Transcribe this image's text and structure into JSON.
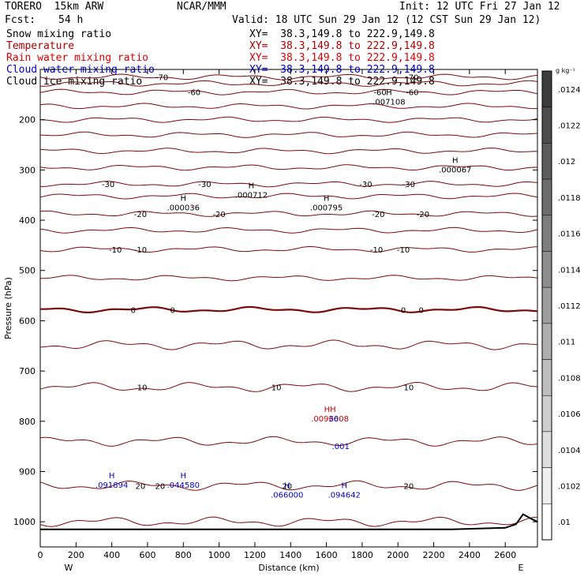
{
  "header": {
    "model": "TORERO  15km ARW",
    "org": "NCAR/MMM",
    "init": "Init: 12 UTC Fri 27 Jan 12",
    "fcst_label": "Fcst:",
    "fcst_value": "54 h",
    "valid": "Valid: 18 UTC Sun 29 Jan 12 (12 CST Sun 29 Jan 12)"
  },
  "fields": [
    {
      "name": "Snow mixing ratio",
      "xy": "XY=  38.3,149.8 to 222.9,149.8",
      "color": "#000000"
    },
    {
      "name": "Temperature",
      "xy": "XY=  38.3,149.8 to 222.9,149.8",
      "color": "#aa0000"
    },
    {
      "name": "Rain water mixing ratio",
      "xy": "XY=  38.3,149.8 to 222.9,149.8",
      "color": "#dd0000"
    },
    {
      "name": "Cloud water mixing ratio",
      "xy": "XY=  38.3,149.8 to 222.9,149.8",
      "color": "#0000cc"
    },
    {
      "name": "Cloud ice mixing ratio",
      "xy": "XY=  38.3,149.8 to 222.9,149.8",
      "color": "#000000"
    }
  ],
  "chart_data": {
    "type": "line",
    "subtype": "vertical-cross-section",
    "xlabel": "Distance (km)",
    "ylabel": "Pressure (hPa)",
    "xlim": [
      0,
      2780
    ],
    "ylim": [
      1050,
      100
    ],
    "x_ticks": [
      "0",
      "200",
      "400",
      "600",
      "800",
      "1000",
      "1200",
      "1400",
      "1600",
      "1800",
      "2000",
      "2200",
      "2400",
      "2600"
    ],
    "y_ticks": [
      "200",
      "300",
      "400",
      "500",
      "600",
      "700",
      "800",
      "900",
      "1000"
    ],
    "x_end_labels": {
      "left": "W",
      "right": "E"
    },
    "colorbar": {
      "unit": "g kg⁻¹",
      "labels": [
        ".0124",
        ".0122",
        ".012",
        ".0118",
        ".0116",
        ".0114",
        ".0112",
        ".011",
        ".0108",
        ".0106",
        ".0104",
        ".0102",
        ".01"
      ]
    },
    "temperature_contours": [
      {
        "value": -70,
        "p": 115,
        "labels": [
          {
            "x": 680,
            "text": "-70"
          },
          {
            "x": 2080,
            "text": "-70"
          }
        ]
      },
      {
        "value": -65,
        "p": 128
      },
      {
        "value": -60,
        "p": 145,
        "labels": [
          {
            "x": 860,
            "text": "-60"
          },
          {
            "x": 1900,
            "text": "-60"
          },
          {
            "x": 2080,
            "text": "-60"
          }
        ]
      },
      {
        "value": -55,
        "p": 173
      },
      {
        "value": -50,
        "p": 200
      },
      {
        "value": -45,
        "p": 230
      },
      {
        "value": -40,
        "p": 262
      },
      {
        "value": -35,
        "p": 295
      },
      {
        "value": -30,
        "p": 328,
        "labels": [
          {
            "x": 380,
            "text": "-30"
          },
          {
            "x": 920,
            "text": "-30"
          },
          {
            "x": 1820,
            "text": "-30"
          },
          {
            "x": 2060,
            "text": "-30"
          }
        ]
      },
      {
        "value": -25,
        "p": 352
      },
      {
        "value": -20,
        "p": 387,
        "labels": [
          {
            "x": 560,
            "text": "-20"
          },
          {
            "x": 1000,
            "text": "-20"
          },
          {
            "x": 1890,
            "text": "-20"
          },
          {
            "x": 2140,
            "text": "-20"
          }
        ]
      },
      {
        "value": -15,
        "p": 420
      },
      {
        "value": -10,
        "p": 458,
        "labels": [
          {
            "x": 420,
            "text": "-10"
          },
          {
            "x": 560,
            "text": "-10"
          },
          {
            "x": 1880,
            "text": "-10"
          },
          {
            "x": 2030,
            "text": "-10"
          }
        ]
      },
      {
        "value": -5,
        "p": 515
      },
      {
        "value": 0,
        "p": 578,
        "labels": [
          {
            "x": 520,
            "text": "0"
          },
          {
            "x": 740,
            "text": "0"
          },
          {
            "x": 2030,
            "text": "0"
          },
          {
            "x": 2130,
            "text": "0"
          }
        ]
      },
      {
        "value": 5,
        "p": 648
      },
      {
        "value": 10,
        "p": 732,
        "labels": [
          {
            "x": 570,
            "text": "10"
          },
          {
            "x": 1320,
            "text": "10"
          },
          {
            "x": 2060,
            "text": "10"
          }
        ]
      },
      {
        "value": 15,
        "p": 840
      },
      {
        "value": 20,
        "p": 928,
        "labels": [
          {
            "x": 560,
            "text": "20"
          },
          {
            "x": 670,
            "text": "20"
          },
          {
            "x": 1380,
            "text": "20"
          },
          {
            "x": 2060,
            "text": "20"
          }
        ]
      },
      {
        "value": 25,
        "p": 1000
      }
    ],
    "maxima": [
      {
        "x": 1950,
        "p": 170,
        "h": "H",
        "value": ".007108",
        "color": "#000000"
      },
      {
        "x": 2320,
        "p": 305,
        "h": "H",
        "value": ".000067",
        "color": "#000000"
      },
      {
        "x": 1180,
        "p": 355,
        "h": "H",
        "value": ".000712",
        "color": "#000000"
      },
      {
        "x": 800,
        "p": 380,
        "h": "H",
        "value": ".000036",
        "color": "#000000"
      },
      {
        "x": 1600,
        "p": 380,
        "h": "H",
        "value": ".000795",
        "color": "#000000"
      },
      {
        "x": 1620,
        "p": 800,
        "h": "HH",
        "value": ".0096008",
        "color": "#cc0000"
      },
      {
        "x": 1640,
        "p": 800,
        "h": "",
        "value": "36",
        "color": "#0000cc"
      },
      {
        "x": 1680,
        "p": 855,
        "h": "",
        "value": ".001",
        "color": "#0000cc"
      },
      {
        "x": 400,
        "p": 932,
        "h": "H",
        "value": ".091894",
        "color": "#0000cc"
      },
      {
        "x": 800,
        "p": 932,
        "h": "H",
        "value": ".044580",
        "color": "#0000cc"
      },
      {
        "x": 1380,
        "p": 952,
        "h": "H",
        "value": ".066000",
        "color": "#0000cc"
      },
      {
        "x": 1700,
        "p": 952,
        "h": "H",
        "value": ".094642",
        "color": "#0000cc"
      }
    ],
    "terrain": {
      "x": [
        0,
        2300,
        2600,
        2660,
        2700,
        2740,
        2780
      ],
      "p": [
        1015,
        1015,
        1012,
        1005,
        985,
        993,
        1000
      ]
    }
  }
}
